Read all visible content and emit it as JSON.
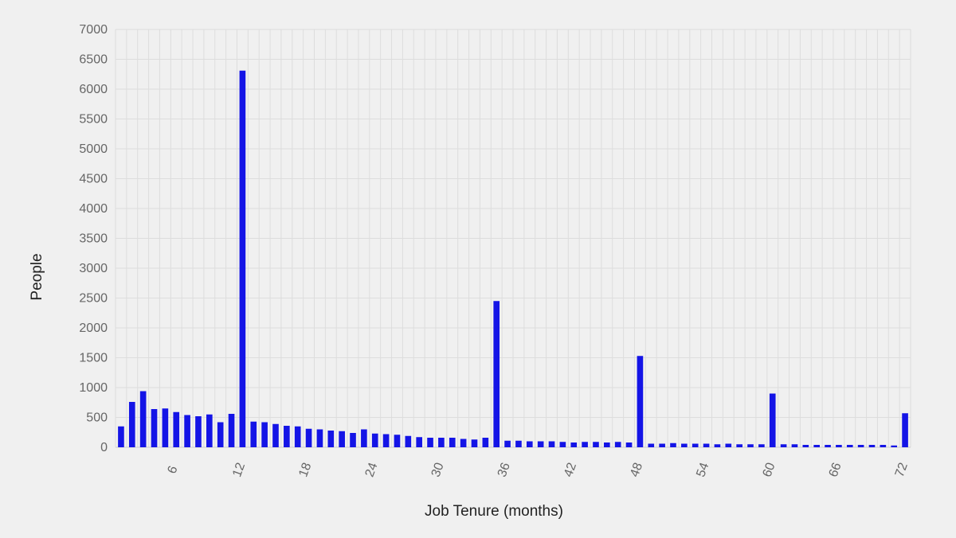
{
  "chart_data": {
    "type": "bar",
    "xlabel": "Job Tenure (months)",
    "ylabel": "People",
    "ylim": [
      0,
      7000
    ],
    "yticks": [
      0,
      500,
      1000,
      1500,
      2000,
      2500,
      3000,
      3500,
      4000,
      4500,
      5000,
      5500,
      6000,
      6500,
      7000
    ],
    "xticks": [
      6,
      12,
      18,
      24,
      30,
      36,
      42,
      48,
      54,
      60,
      66,
      72
    ],
    "grid": true,
    "colors": {
      "bar": "#1414e6",
      "grid": "#dddddd",
      "axis": "#cccccc",
      "text": "#666666",
      "label": "#222222",
      "background": "#f0f0f0"
    },
    "categories": [
      1,
      2,
      3,
      4,
      5,
      6,
      7,
      8,
      9,
      10,
      11,
      12,
      13,
      14,
      15,
      16,
      17,
      18,
      19,
      20,
      21,
      22,
      23,
      24,
      25,
      26,
      27,
      28,
      29,
      30,
      31,
      32,
      33,
      34,
      35,
      36,
      37,
      38,
      39,
      40,
      41,
      42,
      43,
      44,
      45,
      46,
      47,
      48,
      49,
      50,
      51,
      52,
      53,
      54,
      55,
      56,
      57,
      58,
      59,
      60,
      61,
      62,
      63,
      64,
      65,
      66,
      67,
      68,
      69,
      70,
      71,
      72
    ],
    "values": [
      350,
      760,
      940,
      640,
      650,
      590,
      540,
      520,
      550,
      420,
      560,
      6310,
      430,
      420,
      390,
      360,
      350,
      310,
      300,
      280,
      270,
      240,
      300,
      230,
      220,
      210,
      190,
      170,
      160,
      160,
      160,
      140,
      130,
      160,
      2450,
      110,
      110,
      100,
      100,
      100,
      90,
      80,
      90,
      90,
      80,
      90,
      80,
      1530,
      60,
      60,
      70,
      60,
      60,
      60,
      50,
      60,
      50,
      50,
      50,
      900,
      50,
      50,
      40,
      40,
      40,
      40,
      40,
      40,
      40,
      40,
      30,
      570
    ]
  }
}
